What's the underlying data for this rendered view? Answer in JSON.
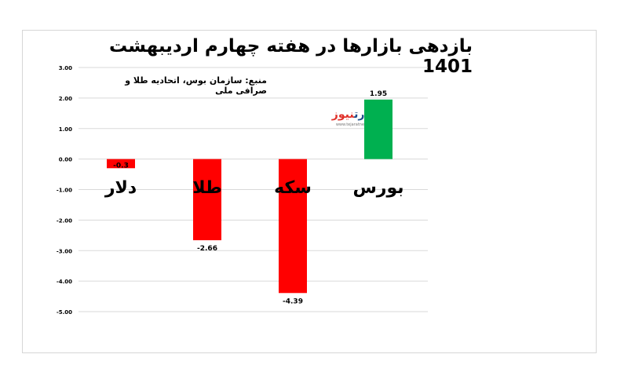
{
  "title": "بازدهی بازارها در هفته چهارم اردیبهشت 1401",
  "subtitle": "منبع: سازمان بوس، اتحادیه طلا و صرافی ملی",
  "logo": {
    "name_part1": "تجارت",
    "name_part2": "نیوز",
    "site": "www.tejaratnews.com"
  },
  "colors": {
    "negative": "#ff0000",
    "positive": "#00b050",
    "grid": "#d9d9d9",
    "text": "#000000"
  },
  "chart_data": {
    "type": "bar",
    "title": "بازدهی بازارها در هفته چهارم اردیبهشت 1401",
    "categories": [
      "دلار",
      "طلا",
      "سکه",
      "بورس"
    ],
    "values": [
      -0.3,
      -2.66,
      -4.39,
      1.95
    ],
    "data_labels": [
      "-0.3",
      "-2.66",
      "-4.39",
      "1.95"
    ],
    "ylim": [
      -5,
      3
    ],
    "yticks": [
      3,
      2,
      1,
      0,
      -1,
      -2,
      -3,
      -4,
      -5
    ],
    "ytick_labels": [
      "3.00",
      "2.00",
      "1.00",
      "0.00",
      "-1.00",
      "-2.00",
      "-3.00",
      "-4.00",
      "-5.00"
    ],
    "grid": true,
    "xlabel": "",
    "ylabel": ""
  }
}
